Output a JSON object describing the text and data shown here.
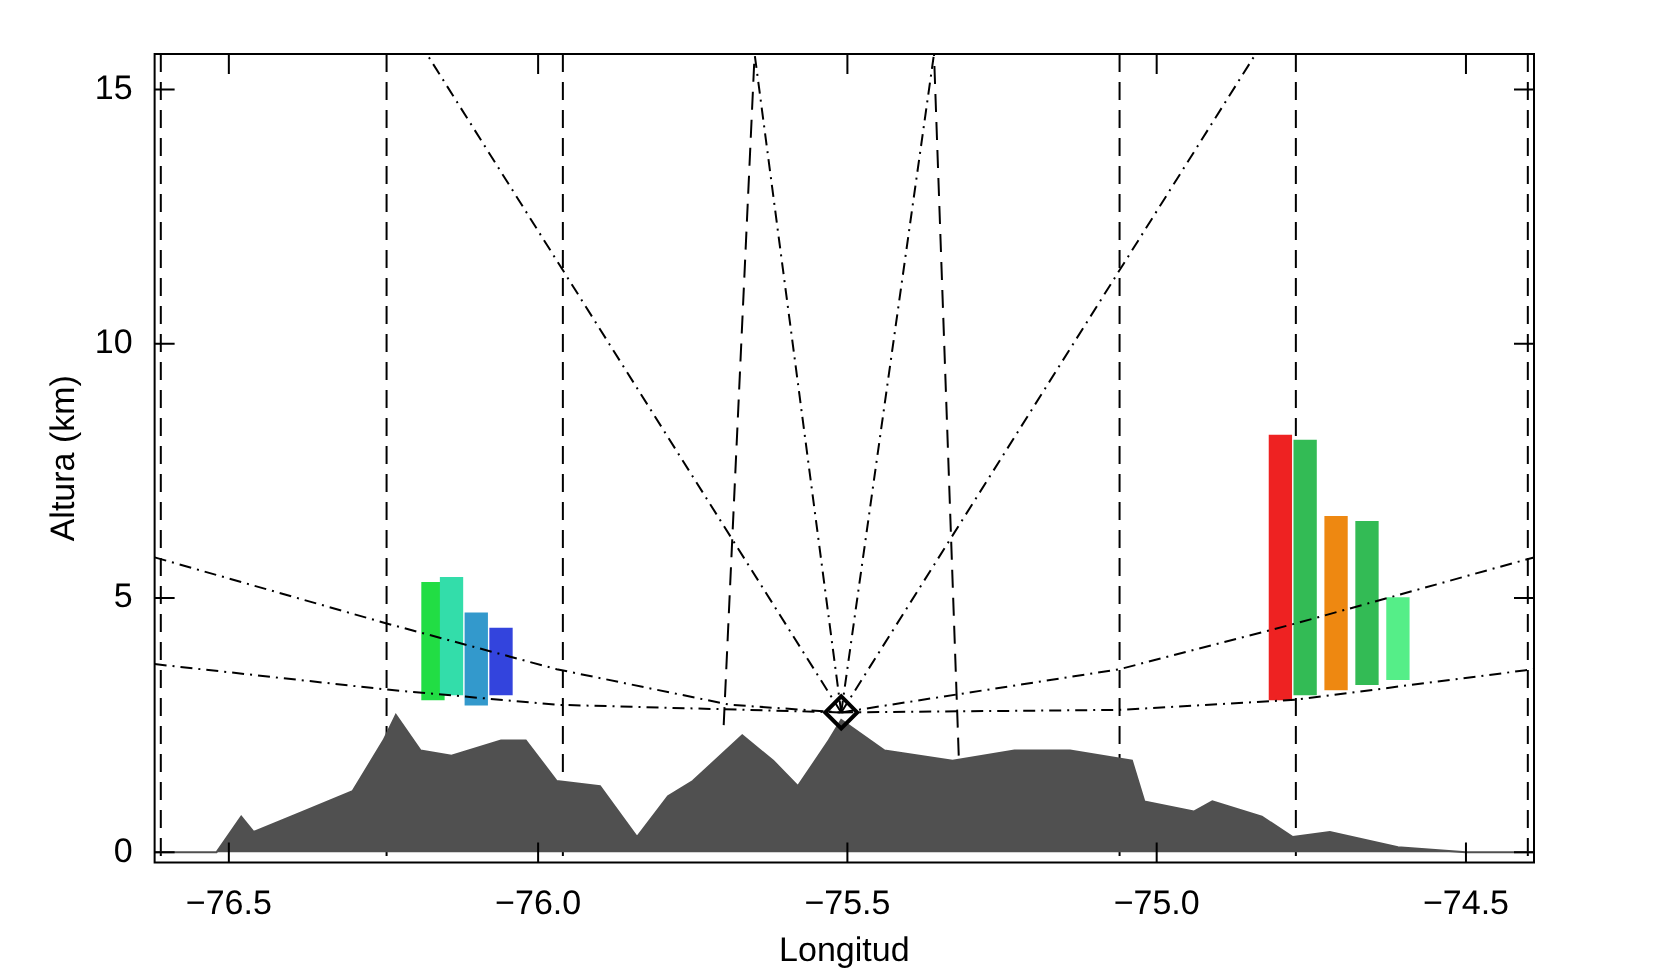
{
  "chart_data": {
    "type": "line",
    "xlabel": "Longitud",
    "ylabel": "Altura (km)",
    "xlim": [
      -76.62,
      -74.39
    ],
    "xticks": [
      {
        "value": -76.5,
        "label": "−76.5"
      },
      {
        "value": -76.0,
        "label": "−76.0"
      },
      {
        "value": -75.5,
        "label": "−75.5"
      },
      {
        "value": -75.0,
        "label": "−75.0"
      },
      {
        "value": -74.5,
        "label": "−74.5"
      }
    ],
    "ylim": [
      -0.2,
      15.7
    ],
    "yticks": [
      0,
      5,
      10,
      15
    ],
    "ref_lines": [
      {
        "axis": "x",
        "value": -76.61,
        "color": "#000000",
        "line_style": "dashed"
      },
      {
        "axis": "x",
        "value": -76.245,
        "color": "#000000",
        "line_style": "dashed"
      },
      {
        "axis": "x",
        "value": -75.96,
        "color": "#000000",
        "line_style": "dashed"
      },
      {
        "axis": "x",
        "value": -75.06,
        "color": "#000000",
        "line_style": "dashed"
      },
      {
        "axis": "x",
        "value": -74.775,
        "color": "#000000",
        "line_style": "dashed"
      },
      {
        "axis": "x",
        "value": -74.4,
        "color": "#000000",
        "line_style": "dashed"
      }
    ],
    "series": [
      {
        "type": "area",
        "color": "#505050",
        "x": [
          -76.62,
          -76.52,
          -76.48,
          -76.46,
          -76.38,
          -76.3,
          -76.25,
          -76.23,
          -76.19,
          -76.14,
          -76.06,
          -76.02,
          -75.97,
          -75.9,
          -75.84,
          -75.79,
          -75.75,
          -75.67,
          -75.62,
          -75.58,
          -75.53,
          -75.51,
          -75.44,
          -75.33,
          -75.23,
          -75.14,
          -75.04,
          -75.02,
          -74.94,
          -74.91,
          -74.83,
          -74.78,
          -74.72,
          -74.61,
          -74.5,
          -74.39
        ],
        "values": [
          0,
          0,
          0.7,
          0.4,
          0.8,
          1.2,
          2.2,
          2.7,
          2.0,
          1.9,
          2.2,
          2.2,
          1.4,
          1.3,
          0.3,
          1.1,
          1.4,
          2.3,
          1.8,
          1.3,
          2.2,
          2.6,
          2.0,
          1.8,
          2.0,
          2.0,
          1.8,
          1.0,
          0.8,
          1.0,
          0.7,
          0.3,
          0.4,
          0.1,
          0,
          0
        ]
      },
      {
        "type": "bar",
        "colors": [
          "#22dd44",
          "#33ddaa",
          "#3399cc",
          "#3344dd"
        ],
        "x": [
          -76.17,
          -76.14,
          -76.1,
          -76.06
        ],
        "base": [
          3.0,
          3.1,
          2.9,
          3.1
        ],
        "values": [
          2.3,
          2.3,
          1.8,
          1.3
        ]
      },
      {
        "type": "bar",
        "colors": [
          "#ee2222",
          "#33bb55",
          "#ee8811",
          "#33bb55",
          "#55ee88"
        ],
        "x": [
          -74.8,
          -74.76,
          -74.71,
          -74.66,
          -74.61
        ],
        "base": [
          3.0,
          3.1,
          3.2,
          3.3,
          3.4
        ],
        "values": [
          5.2,
          5.0,
          3.4,
          3.2,
          1.6
        ]
      },
      {
        "color": "#000000",
        "line_style": "dotted",
        "x": [
          -76.62,
          -76.245,
          -75.97,
          -75.69,
          -75.51
        ],
        "values": [
          5.8,
          4.5,
          3.6,
          2.9,
          2.75
        ]
      },
      {
        "color": "#000000",
        "line_style": "dotted",
        "x": [
          -76.62,
          -76.245,
          -75.97,
          -75.51
        ],
        "values": [
          3.7,
          3.2,
          2.9,
          2.75
        ]
      },
      {
        "color": "#000000",
        "line_style": "dotted",
        "x": [
          -75.51,
          -75.06,
          -74.775,
          -74.39
        ],
        "values": [
          2.75,
          3.6,
          4.5,
          5.8
        ]
      },
      {
        "color": "#000000",
        "line_style": "dotted",
        "x": [
          -75.51,
          -75.06,
          -74.775,
          -74.39
        ],
        "values": [
          2.75,
          2.8,
          3.0,
          3.6
        ]
      },
      {
        "color": "#000000",
        "line_style": "dotted",
        "x": [
          -75.51,
          -76.18
        ],
        "values": [
          2.75,
          15.7
        ]
      },
      {
        "color": "#000000",
        "line_style": "dotted",
        "x": [
          -75.51,
          -75.65
        ],
        "values": [
          2.75,
          15.7
        ]
      },
      {
        "color": "#000000",
        "line_style": "dotted",
        "x": [
          -75.51,
          -75.36
        ],
        "values": [
          2.75,
          15.7
        ]
      },
      {
        "color": "#000000",
        "line_style": "dotted",
        "x": [
          -75.51,
          -74.84
        ],
        "values": [
          2.75,
          15.7
        ]
      },
      {
        "color": "#000000",
        "line_style": "dashed",
        "x": [
          -75.7,
          -75.65
        ],
        "values": [
          2.5,
          15.7
        ]
      },
      {
        "color": "#000000",
        "line_style": "dashed",
        "x": [
          -75.32,
          -75.36
        ],
        "values": [
          1.9,
          15.7
        ]
      },
      {
        "type": "scatter",
        "color": "#000000",
        "marker": "diamond",
        "x": [
          -75.51
        ],
        "values": [
          2.75
        ]
      }
    ]
  }
}
